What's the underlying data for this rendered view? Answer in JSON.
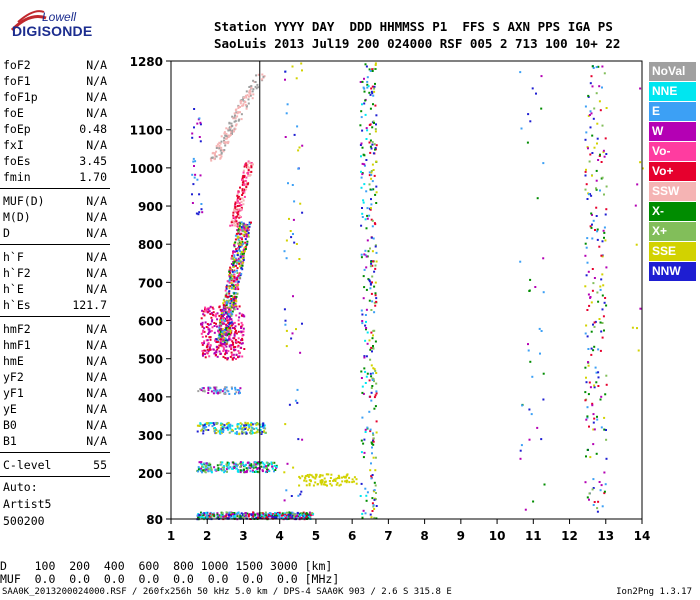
{
  "logo": {
    "line1": "Lowell",
    "line2": "DIGISONDE"
  },
  "header": {
    "line1": "Station YYYY DAY  DDD HHMMSS P1  FFS S AXN PPS IGA PS",
    "line2": "SaoLuis 2013 Jul19 200 024000 RSF 005 2 713 100 10+ 22"
  },
  "params": {
    "group1": [
      {
        "label": "foF2",
        "value": "N/A"
      },
      {
        "label": "foF1",
        "value": "N/A"
      },
      {
        "label": "foF1p",
        "value": "N/A"
      },
      {
        "label": "foE",
        "value": "N/A"
      },
      {
        "label": "foEp",
        "value": "0.48"
      },
      {
        "label": "fxI",
        "value": "N/A"
      },
      {
        "label": "foEs",
        "value": "3.45"
      },
      {
        "label": "fmin",
        "value": "1.70"
      }
    ],
    "group2": [
      {
        "label": "MUF(D)",
        "value": "N/A"
      },
      {
        "label": "M(D)",
        "value": "N/A"
      },
      {
        "label": "D",
        "value": "N/A"
      }
    ],
    "group3": [
      {
        "label": "h`F",
        "value": "N/A"
      },
      {
        "label": "h`F2",
        "value": "N/A"
      },
      {
        "label": "h`E",
        "value": "N/A"
      },
      {
        "label": "h`Es",
        "value": "121.7"
      }
    ],
    "group4": [
      {
        "label": "hmF2",
        "value": "N/A"
      },
      {
        "label": "hmF1",
        "value": "N/A"
      },
      {
        "label": "hmE",
        "value": "N/A"
      },
      {
        "label": "yF2",
        "value": "N/A"
      },
      {
        "label": "yF1",
        "value": "N/A"
      },
      {
        "label": "yE",
        "value": "N/A"
      },
      {
        "label": "B0",
        "value": "N/A"
      },
      {
        "label": "B1",
        "value": "N/A"
      }
    ],
    "group5": [
      {
        "label": "C-level",
        "value": "55"
      }
    ]
  },
  "auto": {
    "line1": "Auto:",
    "line2": "Artist5",
    "line3": "500200"
  },
  "legend": [
    {
      "label": "NoVal",
      "color": "#a0a0a0"
    },
    {
      "label": "NNE",
      "color": "#00e6f0"
    },
    {
      "label": "E",
      "color": "#3ca0f5"
    },
    {
      "label": "W",
      "color": "#b400b4"
    },
    {
      "label": "Vo-",
      "color": "#ff3ca0"
    },
    {
      "label": "Vo+",
      "color": "#e6002d"
    },
    {
      "label": "SSW",
      "color": "#f5b4b4"
    },
    {
      "label": "X-",
      "color": "#008c00"
    },
    {
      "label": "X+",
      "color": "#82be5a"
    },
    {
      "label": "SSE",
      "color": "#d2d200"
    },
    {
      "label": "NNW",
      "color": "#1e1ed2"
    }
  ],
  "bottom": {
    "d_line": "D    100  200  400  600  800 1000 1500 3000 [km]",
    "muf_line": "MUF  0.0  0.0  0.0  0.0  0.0  0.0  0.0  0.0 [MHz]"
  },
  "footer": {
    "left": "SAA0K_2013200024000.RSF / 260fx256h 50 kHz 5.0 km / DPS-4 SAA0K 903 / 2.6 S 315.8 E",
    "right": "Ion2Png 1.3.17"
  },
  "chart_data": {
    "type": "scatter",
    "x_ticks": [
      "1",
      "2",
      "3",
      "4",
      "5",
      "6",
      "7",
      "8",
      "9",
      "10",
      "11",
      "12",
      "13",
      "14"
    ],
    "y_ticks": [
      "80",
      "200",
      "300",
      "400",
      "500",
      "600",
      "700",
      "800",
      "900",
      "1000",
      "1100",
      "1280"
    ],
    "xlim": [
      1,
      14
    ],
    "ylim": [
      80,
      1280
    ],
    "vline": 3.45,
    "clusters": [
      {
        "name": "Es-trace-1",
        "x": [
          1.7,
          4.9
        ],
        "y": [
          82,
          100
        ],
        "colors": [
          "#1e1ed2",
          "#3ca0f5",
          "#00e6f0",
          "#008c00",
          "#b400b4",
          "#82be5a",
          "#e6002d"
        ],
        "n": 420
      },
      {
        "name": "Es-trace-1b",
        "x": [
          4.5,
          6.1
        ],
        "y": [
          170,
          200
        ],
        "colors": [
          "#d2d200"
        ],
        "n": 90
      },
      {
        "name": "Es-trace-2",
        "x": [
          1.7,
          3.9
        ],
        "y": [
          205,
          232
        ],
        "colors": [
          "#00e6f0",
          "#3ca0f5",
          "#008c00",
          "#b400b4",
          "#82be5a"
        ],
        "n": 220
      },
      {
        "name": "Es-trace-3",
        "x": [
          1.7,
          3.6
        ],
        "y": [
          305,
          335
        ],
        "colors": [
          "#00e6f0",
          "#3ca0f5",
          "#82be5a",
          "#1e1ed2",
          "#d2d200"
        ],
        "n": 180
      },
      {
        "name": "Es-trace-4",
        "x": [
          1.7,
          2.9
        ],
        "y": [
          410,
          428
        ],
        "colors": [
          "#a0a0a0",
          "#3ca0f5",
          "#b400b4"
        ],
        "n": 60
      },
      {
        "name": "F-spread-1",
        "x": [
          1.8,
          3.0
        ],
        "y": [
          500,
          640
        ],
        "colors": [
          "#e6002d",
          "#ff3ca0",
          "#b400b4"
        ],
        "n": 300
      },
      {
        "name": "F-spread-2",
        "x": [
          2.2,
          3.1
        ],
        "y": [
          540,
          860
        ],
        "colors": [
          "#e6002d",
          "#b400b4",
          "#ff3ca0",
          "#d2d200",
          "#1e1ed2",
          "#3ca0f5",
          "#008c00",
          "#82be5a"
        ],
        "n": 520
      },
      {
        "name": "F-spread-3",
        "x": [
          2.6,
          3.2
        ],
        "y": [
          850,
          1020
        ],
        "colors": [
          "#f5b4b4",
          "#ff3ca0",
          "#e6002d"
        ],
        "n": 140
      },
      {
        "name": "F-spread-4",
        "x": [
          2.0,
          3.4
        ],
        "y": [
          1020,
          1250
        ],
        "colors": [
          "#f5b4b4",
          "#a0a0a0"
        ],
        "n": 180
      },
      {
        "name": "col-6.3",
        "x": [
          6.2,
          6.45
        ],
        "y": [
          82,
          1280
        ],
        "colors": [
          "#1e1ed2",
          "#3ca0f5",
          "#008c00",
          "#b400b4",
          "#00e6f0"
        ],
        "n": 120
      },
      {
        "name": "col-6.55",
        "x": [
          6.45,
          6.65
        ],
        "y": [
          82,
          1280
        ],
        "colors": [
          "#3ca0f5",
          "#008c00",
          "#82be5a",
          "#d2d200",
          "#e6002d",
          "#1e1ed2"
        ],
        "n": 200
      },
      {
        "name": "col-4.3",
        "x": [
          4.1,
          4.6
        ],
        "y": [
          120,
          1280
        ],
        "colors": [
          "#1e1ed2",
          "#b400b4",
          "#d2d200",
          "#3ca0f5"
        ],
        "n": 60
      },
      {
        "name": "col-11",
        "x": [
          10.6,
          11.3
        ],
        "y": [
          100,
          1280
        ],
        "colors": [
          "#3ca0f5",
          "#008c00",
          "#b400b4",
          "#1e1ed2"
        ],
        "n": 40
      },
      {
        "name": "col-12.7",
        "x": [
          12.4,
          13.0
        ],
        "y": [
          100,
          1280
        ],
        "colors": [
          "#d2d200",
          "#008c00",
          "#82be5a",
          "#b400b4",
          "#3ca0f5",
          "#e6002d",
          "#1e1ed2"
        ],
        "n": 220
      },
      {
        "name": "scatter-1.7",
        "x": [
          1.55,
          1.85
        ],
        "y": [
          880,
          1170
        ],
        "colors": [
          "#1e1ed2",
          "#3ca0f5",
          "#b400b4"
        ],
        "n": 30
      },
      {
        "name": "scatter-far",
        "x": [
          13.7,
          14.0
        ],
        "y": [
          480,
          1280
        ],
        "colors": [
          "#d2d200",
          "#b400b4"
        ],
        "n": 10
      }
    ]
  }
}
